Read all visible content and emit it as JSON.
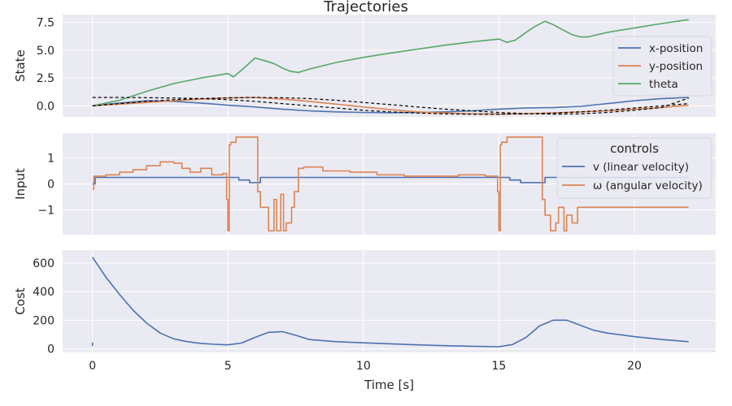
{
  "title": "Trajectories",
  "colors": {
    "background": "#eaeaf2",
    "grid": "#ffffff",
    "blue": "#4c72b0",
    "orange": "#dd8452",
    "green": "#55a868",
    "reference": "#000000"
  },
  "chart_data": [
    {
      "type": "line",
      "panel": "state",
      "title": "Trajectories",
      "xlabel": "",
      "ylabel": "State",
      "xlim": [
        -1.1,
        23.0
      ],
      "ylim": [
        -1.0,
        8.2
      ],
      "yticks": [
        0.0,
        2.5,
        5.0,
        7.5
      ],
      "ytick_labels": [
        "0.0",
        "2.5",
        "5.0",
        "7.5"
      ],
      "grid": true,
      "legend": "right",
      "series": [
        {
          "name": "x-position",
          "color": "#4c72b0",
          "x": [
            0,
            1,
            2,
            3,
            4,
            5,
            6,
            7,
            8,
            9,
            10,
            11,
            12,
            13,
            14,
            15,
            16,
            17,
            18,
            19,
            20,
            21,
            22
          ],
          "y": [
            0.0,
            0.25,
            0.45,
            0.4,
            0.25,
            0.05,
            -0.1,
            -0.3,
            -0.45,
            -0.55,
            -0.6,
            -0.62,
            -0.6,
            -0.55,
            -0.45,
            -0.3,
            -0.2,
            -0.15,
            -0.05,
            0.2,
            0.45,
            0.65,
            0.75
          ]
        },
        {
          "name": "y-position",
          "color": "#dd8452",
          "x": [
            0,
            1,
            2,
            3,
            4,
            5,
            6,
            7,
            8,
            9,
            10,
            11,
            12,
            13,
            14,
            15,
            16,
            17,
            18,
            19,
            20,
            21,
            22
          ],
          "y": [
            0.0,
            0.15,
            0.3,
            0.45,
            0.6,
            0.7,
            0.75,
            0.6,
            0.4,
            0.15,
            -0.1,
            -0.35,
            -0.55,
            -0.65,
            -0.72,
            -0.75,
            -0.7,
            -0.65,
            -0.55,
            -0.45,
            -0.3,
            -0.15,
            0.05
          ]
        },
        {
          "name": "theta",
          "color": "#55a868",
          "x": [
            0,
            1,
            2,
            3,
            4,
            5,
            5.2,
            5.5,
            6,
            6.3,
            6.7,
            7,
            7.3,
            7.6,
            8,
            9,
            10,
            11,
            12,
            13,
            14,
            15,
            15.3,
            15.6,
            16,
            16.3,
            16.7,
            17,
            17.3,
            17.7,
            18,
            18.3,
            19,
            20,
            21,
            22
          ],
          "y": [
            0.0,
            0.5,
            1.3,
            2.0,
            2.5,
            2.9,
            2.6,
            3.2,
            4.3,
            4.1,
            3.8,
            3.4,
            3.1,
            3.0,
            3.3,
            3.9,
            4.35,
            4.75,
            5.1,
            5.45,
            5.75,
            6.0,
            5.7,
            5.9,
            6.6,
            7.1,
            7.6,
            7.3,
            6.9,
            6.4,
            6.2,
            6.2,
            6.6,
            7.0,
            7.4,
            7.75
          ]
        },
        {
          "name": "",
          "color": "#000000",
          "dashed": true,
          "x": [
            0,
            1,
            2,
            3,
            4,
            5,
            6,
            7,
            8,
            9,
            10,
            11,
            12,
            13,
            14,
            15,
            16,
            17,
            18,
            19,
            20,
            21,
            22
          ],
          "y": [
            0.75,
            0.75,
            0.73,
            0.7,
            0.65,
            0.55,
            0.4,
            0.2,
            0.0,
            -0.2,
            -0.4,
            -0.55,
            -0.65,
            -0.72,
            -0.75,
            -0.75,
            -0.72,
            -0.65,
            -0.55,
            -0.4,
            -0.2,
            0.0,
            0.2
          ]
        },
        {
          "name": "",
          "color": "#000000",
          "dashed": true,
          "x": [
            0,
            1,
            2,
            3,
            4,
            5,
            6,
            7,
            8,
            9,
            10,
            11,
            12,
            13,
            14,
            15,
            16,
            17,
            18,
            19,
            20,
            21,
            22
          ],
          "y": [
            0.0,
            0.2,
            0.4,
            0.55,
            0.65,
            0.72,
            0.75,
            0.72,
            0.65,
            0.5,
            0.3,
            0.1,
            -0.1,
            -0.3,
            -0.45,
            -0.6,
            -0.7,
            -0.75,
            -0.72,
            -0.6,
            -0.4,
            -0.15,
            0.7
          ]
        }
      ]
    },
    {
      "type": "line",
      "panel": "input",
      "xlabel": "",
      "ylabel": "Input",
      "xlim": [
        -1.1,
        23.0
      ],
      "ylim": [
        -1.95,
        1.95
      ],
      "yticks": [
        -1,
        0,
        1
      ],
      "ytick_labels": [
        "−1",
        "0",
        "1"
      ],
      "grid": true,
      "legend": "right",
      "legend_title": "controls",
      "series": [
        {
          "name": "v (linear velocity)",
          "color": "#4c72b0",
          "step": true,
          "x": [
            0,
            0.1,
            5.0,
            5.4,
            5.8,
            6.2,
            15.0,
            15.4,
            15.8,
            16.2,
            16.7,
            22
          ],
          "y": [
            0.0,
            0.25,
            0.25,
            0.15,
            0.05,
            0.25,
            0.25,
            0.15,
            0.05,
            0.05,
            0.25,
            0.25
          ]
        },
        {
          "name": "ω (angular velocity)",
          "color": "#dd8452",
          "step": true,
          "x": [
            0,
            0.05,
            0.5,
            1.0,
            1.5,
            2.0,
            2.5,
            3.0,
            3.3,
            3.6,
            4.0,
            4.4,
            4.8,
            4.95,
            5.0,
            5.05,
            5.1,
            5.3,
            6.1,
            6.2,
            6.5,
            6.7,
            6.8,
            6.95,
            7.05,
            7.15,
            7.35,
            7.45,
            7.6,
            7.8,
            8.5,
            9.5,
            10.5,
            11.5,
            12.5,
            13.5,
            14.5,
            14.95,
            15.0,
            15.05,
            15.1,
            15.3,
            15.6,
            16.6,
            16.7,
            16.9,
            17.1,
            17.2,
            17.4,
            17.5,
            17.7,
            17.9,
            22
          ],
          "y": [
            -0.2,
            0.3,
            0.35,
            0.45,
            0.55,
            0.7,
            0.85,
            0.8,
            0.6,
            0.45,
            0.6,
            0.35,
            0.4,
            -0.6,
            -1.8,
            1.5,
            1.6,
            1.8,
            -0.3,
            -0.9,
            -1.8,
            -0.6,
            -1.8,
            -0.4,
            -1.8,
            -1.5,
            -0.9,
            -0.3,
            0.6,
            0.65,
            0.5,
            0.45,
            0.35,
            0.3,
            0.3,
            0.35,
            0.3,
            -0.3,
            -1.8,
            1.5,
            1.6,
            1.8,
            1.8,
            -0.6,
            -1.2,
            -1.8,
            -1.5,
            -0.9,
            -1.8,
            -1.2,
            -1.5,
            -0.9,
            -0.9
          ]
        }
      ]
    },
    {
      "type": "line",
      "panel": "cost",
      "xlabel": "Time [s]",
      "ylabel": "Cost",
      "xlim": [
        -1.1,
        23.0
      ],
      "ylim": [
        -25,
        690
      ],
      "yticks": [
        0,
        200,
        400,
        600
      ],
      "ytick_labels": [
        "0",
        "200",
        "400",
        "600"
      ],
      "xticks": [
        0,
        5,
        10,
        15,
        20
      ],
      "xtick_labels": [
        "0",
        "5",
        "10",
        "15",
        "20"
      ],
      "grid": true,
      "series": [
        {
          "name": "",
          "color": "#4c72b0",
          "x": [
            0,
            0.5,
            1,
            1.5,
            2,
            2.5,
            3,
            3.5,
            4,
            4.5,
            5,
            5.5,
            6,
            6.5,
            7,
            7.5,
            8,
            9,
            10,
            11,
            12,
            13,
            14,
            15,
            15.5,
            16,
            16.5,
            17,
            17.5,
            18,
            18.5,
            19,
            20,
            21,
            22
          ],
          "y": [
            640,
            500,
            380,
            270,
            180,
            110,
            70,
            50,
            38,
            32,
            28,
            40,
            80,
            115,
            120,
            95,
            65,
            50,
            42,
            35,
            28,
            22,
            18,
            15,
            30,
            80,
            160,
            200,
            200,
            165,
            130,
            110,
            85,
            65,
            50
          ]
        },
        {
          "name": "",
          "color": "#4c72b0",
          "x": [
            0,
            0
          ],
          "y": [
            20,
            45
          ]
        }
      ]
    }
  ]
}
